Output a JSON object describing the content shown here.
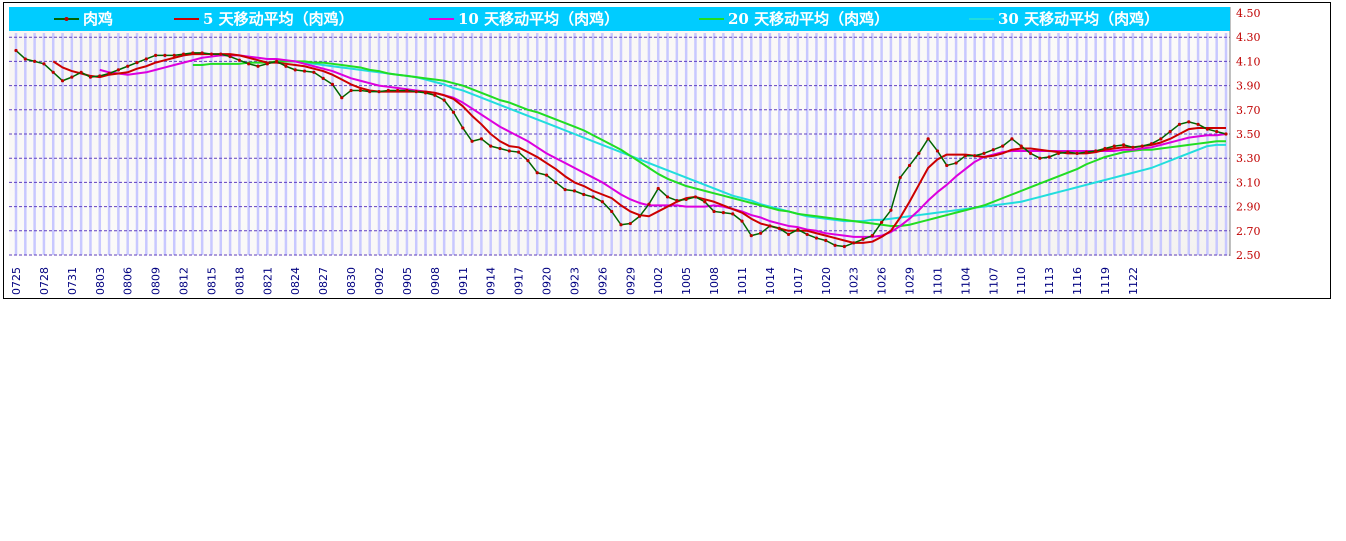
{
  "chart_data": {
    "type": "line",
    "title": "",
    "xlabel": "",
    "ylabel": "",
    "ylim": [
      2.5,
      4.5
    ],
    "yticks": [
      "2.50",
      "2.70",
      "2.90",
      "3.10",
      "3.30",
      "3.50",
      "3.70",
      "3.90",
      "4.10",
      "4.30",
      "4.50"
    ],
    "xticks": [
      "0725",
      "0728",
      "0731",
      "0803",
      "0806",
      "0809",
      "0812",
      "0815",
      "0818",
      "0821",
      "0824",
      "0827",
      "0830",
      "0902",
      "0905",
      "0908",
      "0911",
      "0914",
      "0917",
      "0920",
      "0923",
      "0926",
      "0929",
      "1002",
      "1005",
      "1008",
      "1011",
      "1014",
      "1017",
      "1020",
      "1023",
      "1026",
      "1029",
      "1101",
      "1104",
      "1107",
      "1110",
      "1113",
      "1116",
      "1119",
      "1122"
    ],
    "grid": true,
    "legend_position": "top",
    "colors": {
      "legend_bar": "#00ccff",
      "raw": "#006400",
      "raw_marker": "#c00000",
      "ma5": "#cc0000",
      "ma10": "#dd00dd",
      "ma20": "#22dd22",
      "ma30": "#22dddd",
      "grid": "#6040c0",
      "bars": "#c8c8ff",
      "ytick": "#c00000",
      "xtick": "#000080"
    },
    "legend": [
      {
        "key": "raw",
        "label": "肉鸡"
      },
      {
        "key": "ma5",
        "label": "5 天移动平均（肉鸡）"
      },
      {
        "key": "ma10",
        "label": "10 天移动平均（肉鸡）"
      },
      {
        "key": "ma20",
        "label": "20 天移动平均（肉鸡）"
      },
      {
        "key": "ma30",
        "label": "30 天移动平均（肉鸡）"
      }
    ],
    "series": [
      {
        "key": "raw",
        "name": "肉鸡",
        "values": [
          4.19,
          4.12,
          4.1,
          4.08,
          4.01,
          3.94,
          3.97,
          4.01,
          3.97,
          3.98,
          4.0,
          4.03,
          4.06,
          4.09,
          4.12,
          4.15,
          4.15,
          4.15,
          4.16,
          4.17,
          4.17,
          4.16,
          4.16,
          4.14,
          4.11,
          4.08,
          4.06,
          4.08,
          4.1,
          4.06,
          4.03,
          4.02,
          4.01,
          3.96,
          3.91,
          3.8,
          3.86,
          3.86,
          3.85,
          3.85,
          3.86,
          3.86,
          3.86,
          3.85,
          3.84,
          3.82,
          3.78,
          3.68,
          3.55,
          3.44,
          3.46,
          3.4,
          3.38,
          3.36,
          3.35,
          3.28,
          3.18,
          3.16,
          3.1,
          3.04,
          3.03,
          3.0,
          2.98,
          2.94,
          2.86,
          2.75,
          2.76,
          2.82,
          2.92,
          3.05,
          2.98,
          2.95,
          2.96,
          2.98,
          2.94,
          2.86,
          2.85,
          2.84,
          2.78,
          2.66,
          2.68,
          2.74,
          2.72,
          2.67,
          2.71,
          2.67,
          2.64,
          2.62,
          2.58,
          2.57,
          2.6,
          2.63,
          2.66,
          2.77,
          2.87,
          3.14,
          3.24,
          3.34,
          3.46,
          3.36,
          3.24,
          3.26,
          3.32,
          3.32,
          3.34,
          3.37,
          3.4,
          3.46,
          3.4,
          3.34,
          3.3,
          3.31,
          3.34,
          3.35,
          3.34,
          3.35,
          3.36,
          3.38,
          3.4,
          3.41,
          3.39,
          3.4,
          3.42,
          3.46,
          3.52,
          3.58,
          3.6,
          3.58,
          3.54,
          3.52,
          3.5
        ]
      },
      {
        "key": "ma5",
        "name": "5 天移动平均（肉鸡）",
        "values": [
          null,
          null,
          null,
          null,
          4.1,
          4.05,
          4.02,
          4.0,
          3.98,
          3.97,
          3.99,
          4.0,
          4.01,
          4.04,
          4.06,
          4.09,
          4.11,
          4.13,
          4.15,
          4.16,
          4.16,
          4.16,
          4.16,
          4.16,
          4.15,
          4.13,
          4.11,
          4.09,
          4.09,
          4.08,
          4.07,
          4.06,
          4.04,
          4.02,
          3.99,
          3.95,
          3.91,
          3.88,
          3.86,
          3.85,
          3.85,
          3.85,
          3.85,
          3.85,
          3.85,
          3.84,
          3.82,
          3.79,
          3.73,
          3.65,
          3.58,
          3.5,
          3.44,
          3.4,
          3.39,
          3.35,
          3.31,
          3.26,
          3.21,
          3.15,
          3.1,
          3.07,
          3.03,
          3.0,
          2.97,
          2.91,
          2.86,
          2.83,
          2.82,
          2.86,
          2.9,
          2.94,
          2.97,
          2.98,
          2.96,
          2.94,
          2.91,
          2.88,
          2.85,
          2.8,
          2.76,
          2.74,
          2.72,
          2.7,
          2.7,
          2.7,
          2.68,
          2.66,
          2.64,
          2.62,
          2.6,
          2.6,
          2.61,
          2.65,
          2.7,
          2.81,
          2.94,
          3.08,
          3.22,
          3.29,
          3.33,
          3.33,
          3.33,
          3.32,
          3.31,
          3.32,
          3.34,
          3.37,
          3.38,
          3.38,
          3.37,
          3.36,
          3.35,
          3.34,
          3.34,
          3.34,
          3.35,
          3.37,
          3.38,
          3.39,
          3.39,
          3.4,
          3.41,
          3.43,
          3.46,
          3.5,
          3.54,
          3.55,
          3.55,
          3.55,
          3.55
        ]
      },
      {
        "key": "ma10",
        "name": "10 天移动平均（肉鸡）",
        "values": [
          null,
          null,
          null,
          null,
          null,
          null,
          null,
          null,
          null,
          4.03,
          4.01,
          4.0,
          3.99,
          4.0,
          4.01,
          4.03,
          4.05,
          4.07,
          4.09,
          4.11,
          4.13,
          4.14,
          4.15,
          4.15,
          4.15,
          4.14,
          4.13,
          4.12,
          4.12,
          4.11,
          4.1,
          4.08,
          4.06,
          4.04,
          4.02,
          3.99,
          3.96,
          3.94,
          3.92,
          3.9,
          3.89,
          3.88,
          3.87,
          3.86,
          3.85,
          3.84,
          3.82,
          3.8,
          3.76,
          3.71,
          3.66,
          3.61,
          3.56,
          3.52,
          3.48,
          3.44,
          3.39,
          3.34,
          3.3,
          3.26,
          3.22,
          3.18,
          3.14,
          3.1,
          3.05,
          3.0,
          2.96,
          2.93,
          2.91,
          2.91,
          2.91,
          2.91,
          2.9,
          2.9,
          2.9,
          2.91,
          2.9,
          2.88,
          2.86,
          2.83,
          2.81,
          2.78,
          2.76,
          2.74,
          2.73,
          2.71,
          2.7,
          2.68,
          2.67,
          2.66,
          2.65,
          2.65,
          2.65,
          2.66,
          2.69,
          2.74,
          2.8,
          2.87,
          2.95,
          3.02,
          3.08,
          3.15,
          3.21,
          3.27,
          3.31,
          3.33,
          3.35,
          3.36,
          3.36,
          3.36,
          3.36,
          3.36,
          3.36,
          3.36,
          3.36,
          3.36,
          3.36,
          3.36,
          3.36,
          3.37,
          3.37,
          3.38,
          3.39,
          3.41,
          3.43,
          3.45,
          3.47,
          3.48,
          3.49,
          3.49,
          3.5
        ]
      },
      {
        "key": "ma20",
        "name": "20 天移动平均（肉鸡）",
        "values": [
          null,
          null,
          null,
          null,
          null,
          null,
          null,
          null,
          null,
          null,
          null,
          null,
          null,
          null,
          null,
          null,
          null,
          null,
          null,
          4.07,
          4.07,
          4.08,
          4.08,
          4.08,
          4.08,
          4.09,
          4.09,
          4.09,
          4.1,
          4.1,
          4.1,
          4.1,
          4.09,
          4.09,
          4.08,
          4.07,
          4.06,
          4.05,
          4.03,
          4.02,
          4.0,
          3.99,
          3.98,
          3.97,
          3.96,
          3.95,
          3.94,
          3.92,
          3.9,
          3.87,
          3.84,
          3.81,
          3.78,
          3.76,
          3.73,
          3.7,
          3.68,
          3.65,
          3.62,
          3.59,
          3.56,
          3.53,
          3.49,
          3.45,
          3.41,
          3.37,
          3.32,
          3.27,
          3.22,
          3.17,
          3.13,
          3.1,
          3.07,
          3.05,
          3.03,
          3.01,
          2.99,
          2.97,
          2.95,
          2.93,
          2.91,
          2.89,
          2.87,
          2.86,
          2.84,
          2.83,
          2.82,
          2.81,
          2.8,
          2.79,
          2.78,
          2.77,
          2.76,
          2.75,
          2.74,
          2.74,
          2.75,
          2.77,
          2.79,
          2.81,
          2.83,
          2.85,
          2.87,
          2.89,
          2.91,
          2.94,
          2.97,
          3.0,
          3.03,
          3.06,
          3.09,
          3.12,
          3.15,
          3.18,
          3.21,
          3.25,
          3.28,
          3.31,
          3.33,
          3.35,
          3.36,
          3.37,
          3.37,
          3.38,
          3.39,
          3.4,
          3.41,
          3.42,
          3.43,
          3.44,
          3.44
        ]
      },
      {
        "key": "ma30",
        "name": "30 天移动平均（肉鸡）",
        "values": [
          null,
          null,
          null,
          null,
          null,
          null,
          null,
          null,
          null,
          null,
          null,
          null,
          null,
          null,
          null,
          null,
          null,
          null,
          null,
          null,
          null,
          null,
          null,
          null,
          null,
          null,
          null,
          null,
          null,
          4.1,
          4.1,
          4.09,
          4.08,
          4.07,
          4.06,
          4.05,
          4.04,
          4.03,
          4.02,
          4.01,
          4.0,
          3.99,
          3.98,
          3.97,
          3.95,
          3.93,
          3.91,
          3.88,
          3.86,
          3.83,
          3.8,
          3.77,
          3.74,
          3.71,
          3.68,
          3.65,
          3.62,
          3.59,
          3.56,
          3.53,
          3.5,
          3.47,
          3.44,
          3.41,
          3.38,
          3.35,
          3.32,
          3.29,
          3.26,
          3.23,
          3.2,
          3.17,
          3.14,
          3.11,
          3.08,
          3.05,
          3.02,
          2.99,
          2.97,
          2.95,
          2.92,
          2.9,
          2.88,
          2.86,
          2.84,
          2.82,
          2.81,
          2.8,
          2.79,
          2.78,
          2.78,
          2.78,
          2.79,
          2.79,
          2.8,
          2.81,
          2.82,
          2.83,
          2.84,
          2.85,
          2.86,
          2.87,
          2.88,
          2.89,
          2.9,
          2.91,
          2.92,
          2.93,
          2.94,
          2.96,
          2.98,
          3.0,
          3.02,
          3.04,
          3.06,
          3.08,
          3.1,
          3.12,
          3.14,
          3.16,
          3.18,
          3.2,
          3.22,
          3.25,
          3.28,
          3.31,
          3.34,
          3.37,
          3.4,
          3.41,
          3.41
        ]
      }
    ]
  }
}
